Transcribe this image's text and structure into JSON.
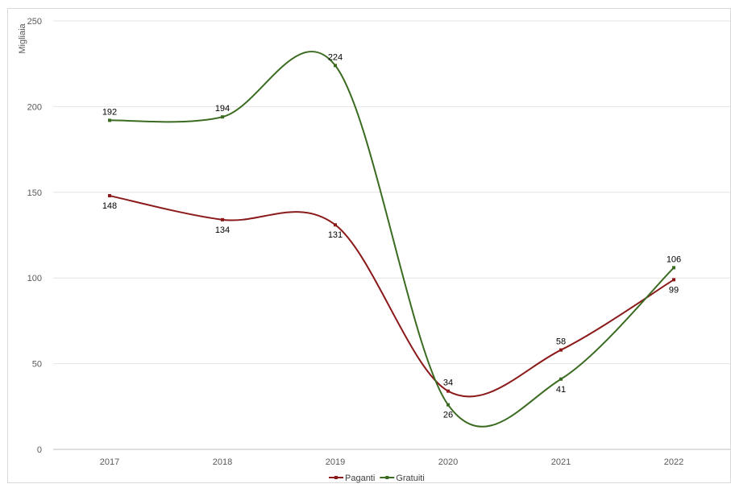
{
  "chart_data": {
    "type": "line",
    "title": "",
    "xlabel": "",
    "ylabel": "Migliaia",
    "categories": [
      "2017",
      "2018",
      "2019",
      "2020",
      "2021",
      "2022"
    ],
    "ylim": [
      0,
      250
    ],
    "yticks": [
      0,
      50,
      100,
      150,
      200,
      250
    ],
    "grid": true,
    "legend_position": "bottom",
    "smooth": true,
    "series": [
      {
        "name": "Paganti",
        "values": [
          148,
          134,
          131,
          34,
          58,
          99
        ],
        "color": "#8B1A1A",
        "label_position": [
          "below",
          "below",
          "below",
          "above",
          "above",
          "below"
        ]
      },
      {
        "name": "Gratuiti",
        "values": [
          192,
          194,
          224,
          26,
          41,
          106
        ],
        "color": "#3A6B20",
        "label_position": [
          "above",
          "above",
          "above",
          "below",
          "below",
          "above"
        ]
      }
    ]
  }
}
